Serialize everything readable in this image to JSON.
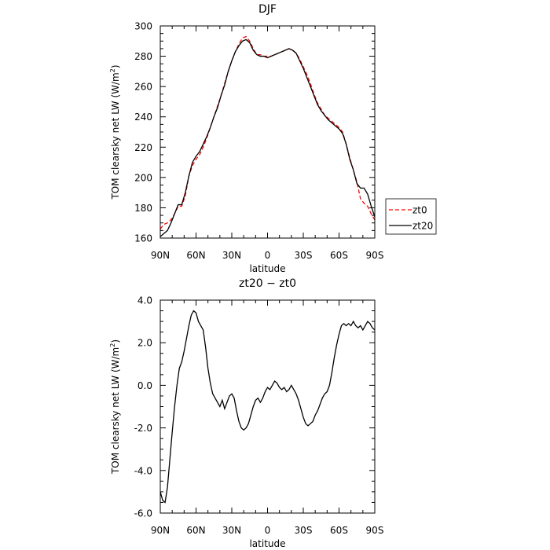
{
  "chart_data": [
    {
      "type": "line",
      "title": "DJF",
      "xlabel": "latitude",
      "ylabel": "TOM clearsky net LW (W/m²)",
      "ylabel_parts": {
        "text": "TOM clearsky net LW (W/m",
        "sup": "2",
        "close": ")"
      },
      "x_ticks": [
        "90N",
        "60N",
        "30N",
        "0",
        "30S",
        "60S",
        "90S"
      ],
      "xlim": [
        90,
        -90
      ],
      "ylim": [
        160,
        300
      ],
      "y_ticks": [
        "160",
        "180",
        "200",
        "220",
        "240",
        "260",
        "280",
        "300"
      ],
      "legend_position": "right",
      "series": [
        {
          "name": "zt0",
          "color": "#ff0000",
          "style": "dashed",
          "x": [
            90,
            87,
            84,
            81,
            78,
            75,
            72,
            69,
            66,
            63,
            60,
            57,
            54,
            51,
            48,
            45,
            42,
            39,
            36,
            33,
            30,
            27,
            24,
            21,
            18,
            15,
            12,
            9,
            6,
            3,
            0,
            -3,
            -6,
            -9,
            -12,
            -15,
            -18,
            -21,
            -24,
            -27,
            -30,
            -33,
            -36,
            -39,
            -42,
            -45,
            -48,
            -51,
            -54,
            -57,
            -60,
            -63,
            -66,
            -69,
            -72,
            -75,
            -78,
            -81,
            -84,
            -87,
            -90
          ],
          "y": [
            166,
            169,
            170,
            172,
            176,
            181,
            181,
            188,
            201,
            208,
            212,
            215,
            220,
            226,
            233,
            240,
            247,
            254,
            262,
            270,
            277,
            283,
            288,
            292,
            293,
            290,
            285,
            281,
            281,
            280,
            280,
            280,
            281,
            282,
            283,
            284,
            285,
            284,
            282,
            278,
            273,
            268,
            262,
            255,
            249,
            245,
            241,
            239,
            237,
            235,
            233,
            230,
            222,
            213,
            205,
            197,
            186,
            183,
            181,
            176,
            172
          ]
        },
        {
          "name": "zt20",
          "color": "#000000",
          "style": "solid",
          "x": [
            90,
            87,
            84,
            81,
            78,
            75,
            72,
            69,
            66,
            63,
            60,
            57,
            54,
            51,
            48,
            45,
            42,
            39,
            36,
            33,
            30,
            27,
            24,
            21,
            18,
            15,
            12,
            9,
            6,
            3,
            0,
            -3,
            -6,
            -9,
            -12,
            -15,
            -18,
            -21,
            -24,
            -27,
            -30,
            -33,
            -36,
            -39,
            -42,
            -45,
            -48,
            -51,
            -54,
            -57,
            -60,
            -63,
            -66,
            -69,
            -72,
            -75,
            -78,
            -81,
            -84,
            -87,
            -90
          ],
          "y": [
            161,
            163,
            165,
            170,
            176,
            182,
            182,
            190,
            201,
            210,
            214,
            217,
            222,
            227,
            233,
            240,
            246,
            254,
            261,
            270,
            277,
            283,
            287,
            290,
            291,
            289,
            284,
            281,
            280,
            280,
            279,
            280,
            281,
            282,
            283,
            284,
            285,
            284,
            282,
            277,
            272,
            266,
            260,
            254,
            248,
            244,
            241,
            238,
            236,
            234,
            232,
            229,
            222,
            212,
            205,
            196,
            193,
            193,
            189,
            181,
            174
          ]
        }
      ]
    },
    {
      "type": "line",
      "title": "zt20 − zt0",
      "xlabel": "latitude",
      "ylabel": "TOM clearsky net LW (W/m²)",
      "ylabel_parts": {
        "text": "TOM clearsky net LW (W/m",
        "sup": "2",
        "close": ")"
      },
      "x_ticks": [
        "90N",
        "60N",
        "30N",
        "0",
        "30S",
        "60S",
        "90S"
      ],
      "xlim": [
        90,
        -90
      ],
      "ylim": [
        -6,
        4
      ],
      "y_ticks": [
        "-6.0",
        "-4.0",
        "-2.0",
        "0.0",
        "2.0",
        "4.0"
      ],
      "series": [
        {
          "color": "#000000",
          "style": "solid",
          "x": [
            90,
            88,
            86,
            84,
            82,
            80,
            78,
            76,
            74,
            72,
            70,
            68,
            66,
            64,
            62,
            60,
            58,
            56,
            54,
            52,
            50,
            48,
            46,
            44,
            42,
            40,
            38,
            36,
            34,
            32,
            30,
            28,
            26,
            24,
            22,
            20,
            18,
            16,
            14,
            12,
            10,
            8,
            6,
            4,
            2,
            0,
            -2,
            -4,
            -6,
            -8,
            -10,
            -12,
            -14,
            -16,
            -18,
            -20,
            -22,
            -24,
            -26,
            -28,
            -30,
            -32,
            -34,
            -36,
            -38,
            -40,
            -42,
            -44,
            -46,
            -48,
            -50,
            -52,
            -54,
            -56,
            -58,
            -60,
            -62,
            -64,
            -66,
            -68,
            -70,
            -72,
            -74,
            -76,
            -78,
            -80,
            -82,
            -84,
            -86,
            -88,
            -90
          ],
          "y": [
            -5.0,
            -5.4,
            -5.5,
            -4.8,
            -3.5,
            -2.2,
            -1.0,
            0.0,
            0.8,
            1.1,
            1.6,
            2.2,
            2.8,
            3.3,
            3.5,
            3.4,
            3.0,
            2.8,
            2.6,
            1.8,
            0.8,
            0.1,
            -0.4,
            -0.6,
            -0.8,
            -1.0,
            -0.7,
            -1.1,
            -0.8,
            -0.5,
            -0.4,
            -0.6,
            -1.2,
            -1.7,
            -2.0,
            -2.1,
            -2.0,
            -1.8,
            -1.4,
            -1.0,
            -0.7,
            -0.6,
            -0.8,
            -0.6,
            -0.3,
            -0.1,
            -0.2,
            0.0,
            0.2,
            0.1,
            -0.1,
            -0.2,
            -0.1,
            -0.3,
            -0.2,
            0.0,
            -0.2,
            -0.4,
            -0.7,
            -1.1,
            -1.5,
            -1.8,
            -1.9,
            -1.8,
            -1.7,
            -1.4,
            -1.2,
            -0.9,
            -0.6,
            -0.4,
            -0.3,
            0.0,
            0.6,
            1.3,
            1.9,
            2.4,
            2.8,
            2.9,
            2.8,
            2.9,
            2.8,
            3.0,
            2.8,
            2.7,
            2.8,
            2.6,
            2.8,
            3.0,
            2.9,
            2.7,
            2.6
          ]
        }
      ]
    }
  ]
}
